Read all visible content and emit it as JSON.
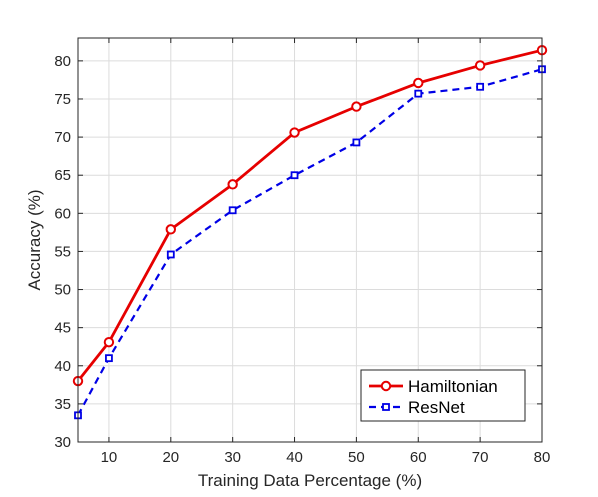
{
  "chart_data": {
    "type": "line",
    "x": [
      5,
      10,
      20,
      30,
      40,
      50,
      60,
      70,
      80
    ],
    "series": [
      {
        "name": "Hamiltonian",
        "values": [
          38.0,
          43.1,
          57.9,
          63.8,
          70.6,
          74.0,
          77.1,
          79.4,
          81.4
        ],
        "color": "#e60000",
        "line": "solid",
        "marker": "circle"
      },
      {
        "name": "ResNet",
        "values": [
          33.5,
          41.0,
          54.6,
          60.4,
          65.0,
          69.3,
          75.7,
          76.6,
          78.9
        ],
        "color": "#0000e6",
        "line": "dashed",
        "marker": "square"
      }
    ],
    "xlabel": "Training Data Percentage (%)",
    "ylabel": "Accuracy (%)",
    "xlim": [
      5,
      80
    ],
    "ylim": [
      30,
      83
    ],
    "xticks": [
      10,
      20,
      30,
      40,
      50,
      60,
      70,
      80
    ],
    "yticks": [
      30,
      35,
      40,
      45,
      50,
      55,
      60,
      65,
      70,
      75,
      80
    ],
    "grid": true,
    "legend_position": "bottom-right"
  }
}
